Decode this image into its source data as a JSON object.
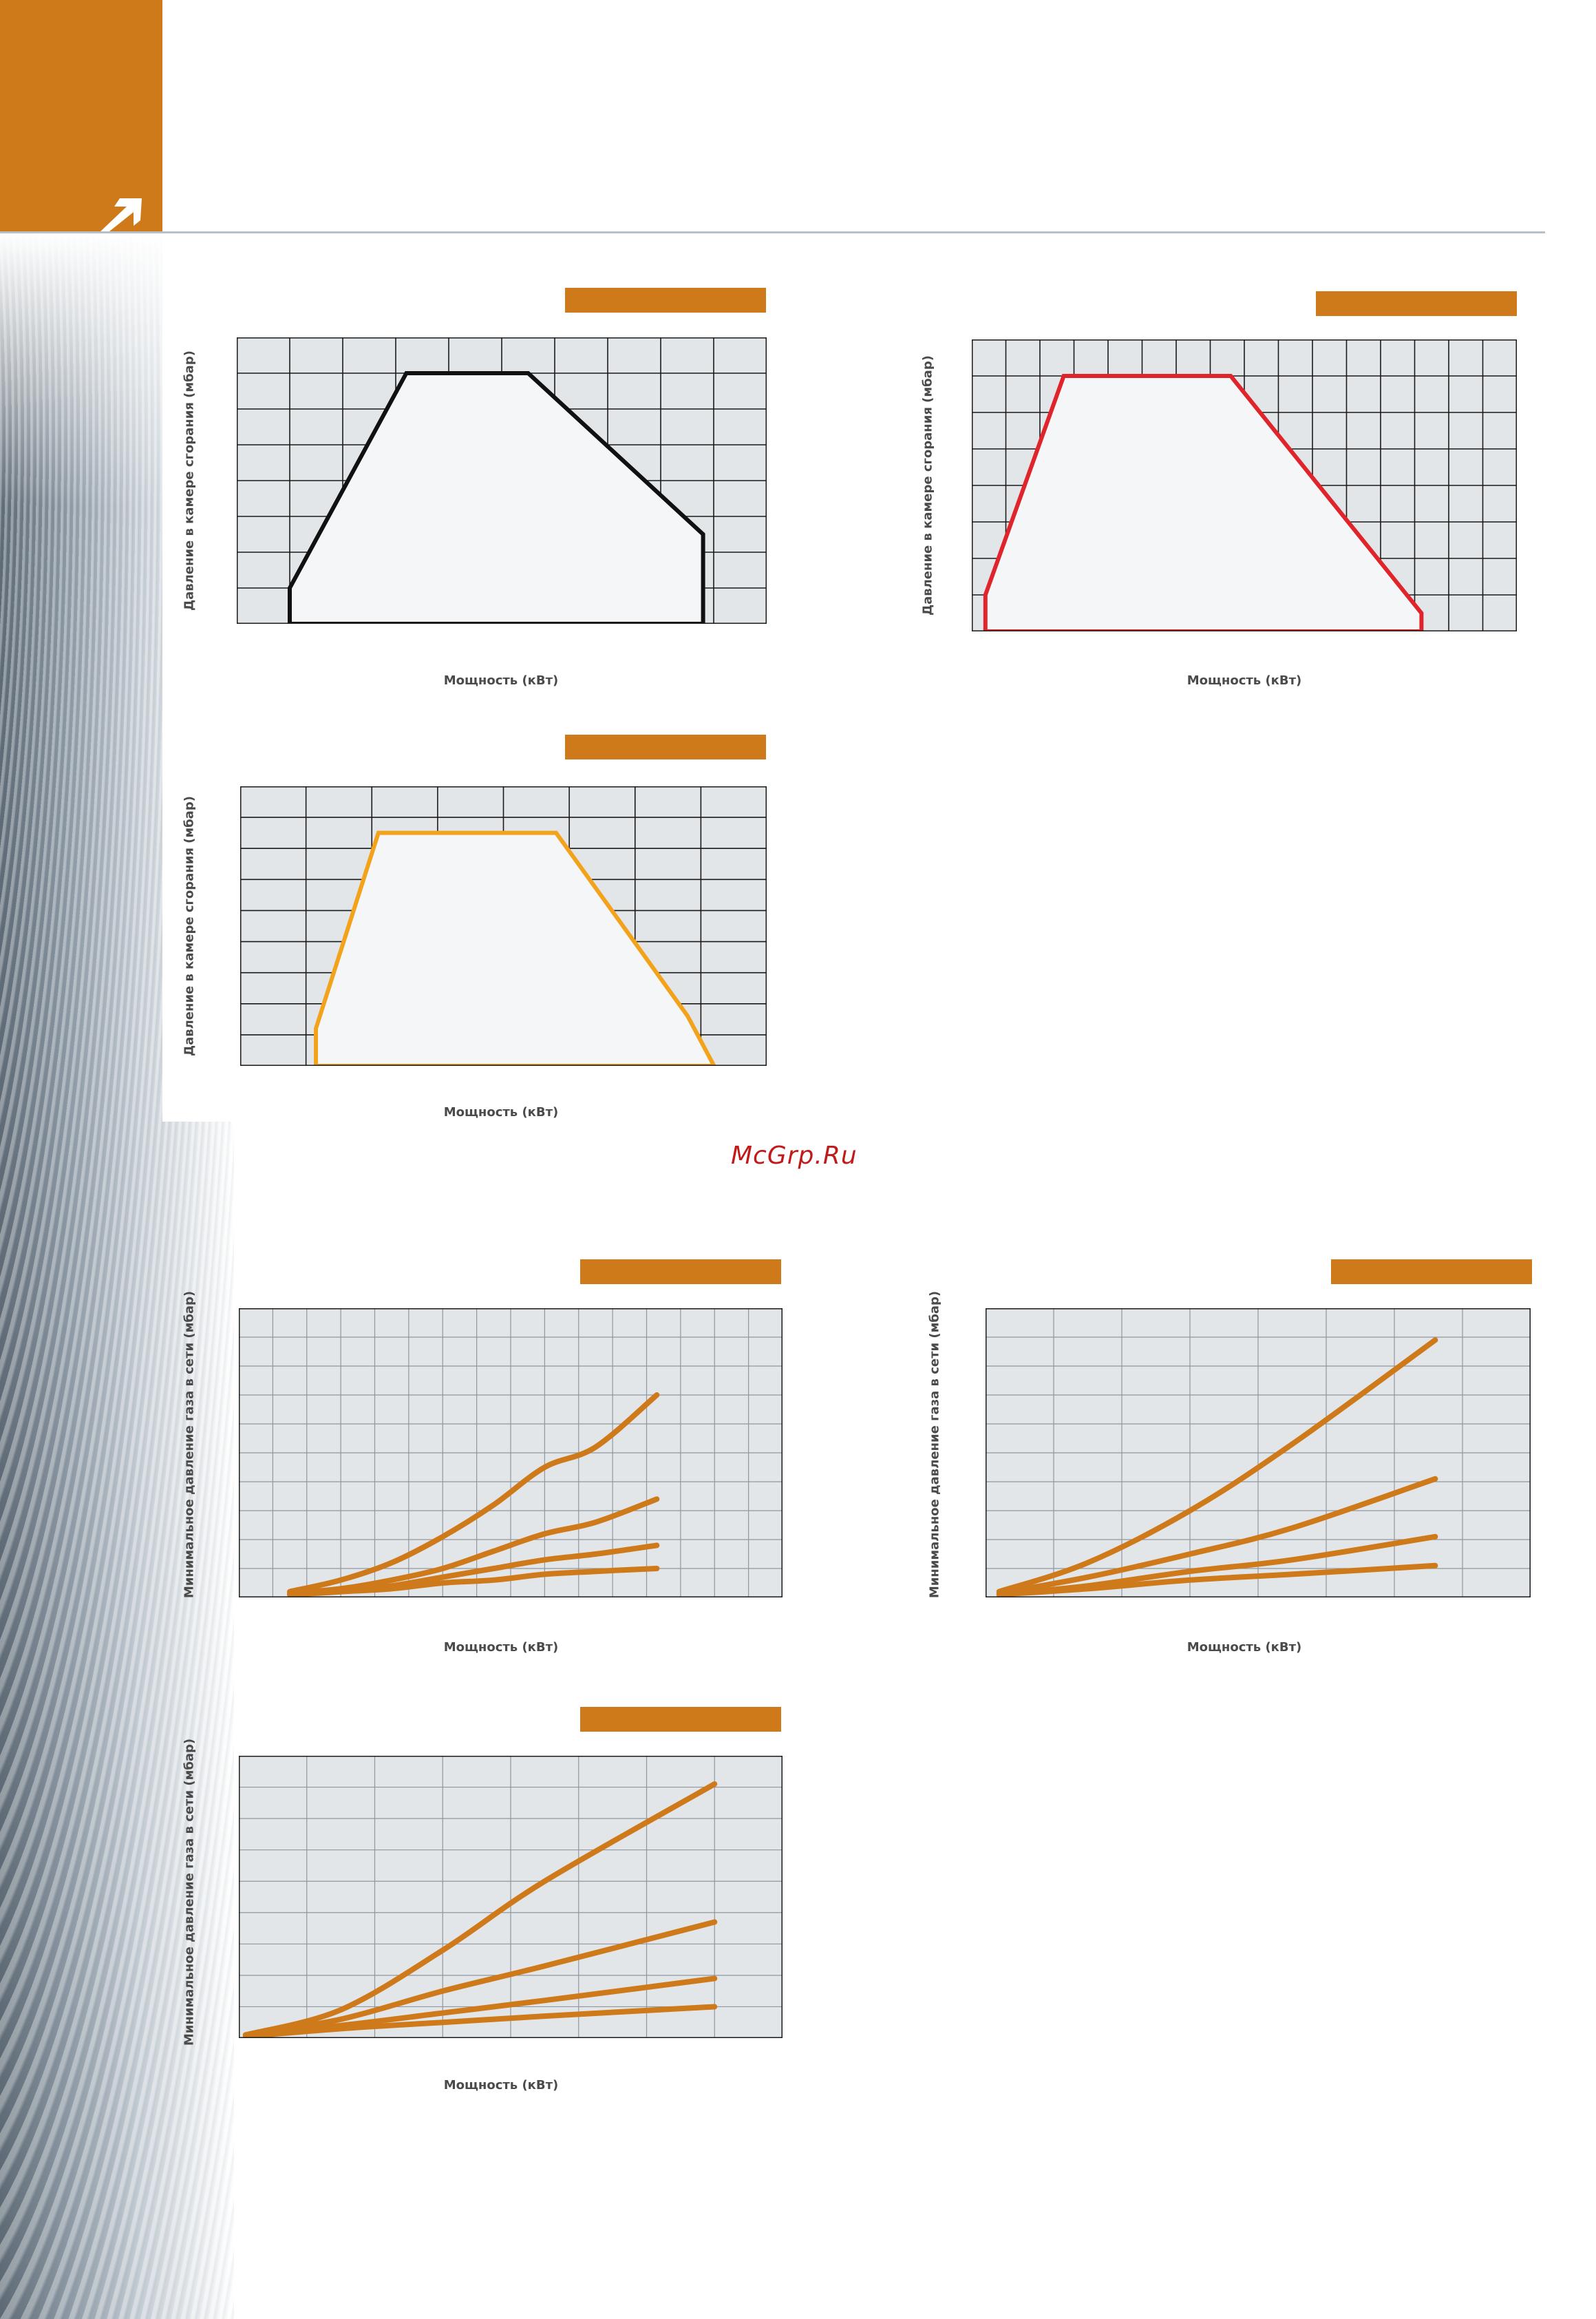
{
  "watermark": "McGrp.Ru",
  "colors": {
    "accent": "#cf7a1a",
    "black": "#111111",
    "red": "#e0242c",
    "yellow": "#f3a21c",
    "curve": "#cf7a1a"
  },
  "chart_data": [
    {
      "id": "working-field-1",
      "type": "area",
      "title": "",
      "xlabel": "Мощность (кВт)",
      "ylabel": "Давление в камере сгорания (мбар)",
      "xlim": [
        0,
        10
      ],
      "ylim": [
        0,
        8
      ],
      "x": [
        1,
        3.2,
        5.5,
        8.8,
        8.8,
        1,
        1
      ],
      "y": [
        1,
        7,
        7,
        2.5,
        0,
        0,
        1
      ],
      "color": "#111111",
      "grid": true
    },
    {
      "id": "working-field-2",
      "type": "area",
      "title": "",
      "xlabel": "Мощность (кВт)",
      "ylabel": "Давление в камере сгорания (мбар)",
      "xlim": [
        0,
        16
      ],
      "ylim": [
        0,
        8
      ],
      "x": [
        0.4,
        2.7,
        7.6,
        13.2,
        13.2,
        0.4,
        0.4
      ],
      "y": [
        1,
        7,
        7,
        0.5,
        0,
        0,
        1
      ],
      "color": "#e0242c",
      "grid": true
    },
    {
      "id": "working-field-3",
      "type": "area",
      "title": "",
      "xlabel": "Мощность (кВт)",
      "ylabel": "Давление в камере сгорания (мбар)",
      "xlim": [
        0,
        8
      ],
      "ylim": [
        0,
        9
      ],
      "x": [
        1.15,
        2.1,
        4.8,
        6.8,
        7.2,
        1.15,
        1.15
      ],
      "y": [
        1.2,
        7.5,
        7.5,
        1.6,
        0,
        0,
        1.2
      ],
      "color": "#f3a21c",
      "grid": true
    },
    {
      "id": "min-gas-pressure-1",
      "type": "line",
      "title": "",
      "xlabel": "Мощность (кВт)",
      "ylabel": "Минимальное давление газа в сети (мбар)",
      "xlim": [
        0,
        16
      ],
      "ylim": [
        0,
        10
      ],
      "x": [
        1.5,
        3,
        4.5,
        6,
        7.5,
        9,
        10.5,
        12.3
      ],
      "series": [
        {
          "name": "curve-1",
          "values": [
            0.2,
            0.6,
            1.2,
            2.1,
            3.2,
            4.5,
            5.2,
            7.0
          ]
        },
        {
          "name": "curve-2",
          "values": [
            0.15,
            0.3,
            0.6,
            1.0,
            1.6,
            2.2,
            2.6,
            3.4
          ]
        },
        {
          "name": "curve-3",
          "values": [
            0.1,
            0.2,
            0.4,
            0.7,
            1.0,
            1.3,
            1.5,
            1.8
          ]
        },
        {
          "name": "curve-4",
          "values": [
            0.1,
            0.2,
            0.3,
            0.5,
            0.6,
            0.8,
            0.9,
            1.0
          ]
        }
      ],
      "grid": true
    },
    {
      "id": "min-gas-pressure-2",
      "type": "line",
      "title": "",
      "xlabel": "Мощность (кВт)",
      "ylabel": "Минимальное давление газа в сети (мбар)",
      "xlim": [
        0,
        8
      ],
      "ylim": [
        0,
        10
      ],
      "x": [
        0.2,
        1.5,
        3,
        4.5,
        6.6
      ],
      "series": [
        {
          "name": "curve-1",
          "values": [
            0.2,
            1.2,
            3.0,
            5.3,
            8.9
          ]
        },
        {
          "name": "curve-2",
          "values": [
            0.15,
            0.7,
            1.5,
            2.4,
            4.1
          ]
        },
        {
          "name": "curve-3",
          "values": [
            0.1,
            0.4,
            0.9,
            1.3,
            2.1
          ]
        },
        {
          "name": "curve-4",
          "values": [
            0.1,
            0.3,
            0.6,
            0.8,
            1.1
          ]
        }
      ],
      "grid": true
    },
    {
      "id": "min-gas-pressure-3",
      "type": "line",
      "title": "",
      "xlabel": "Мощность (кВт)",
      "ylabel": "Минимальное давление газа в сети (мбар)",
      "xlim": [
        0,
        8
      ],
      "ylim": [
        0,
        9
      ],
      "x": [
        0.1,
        1.5,
        3,
        4.5,
        7.0
      ],
      "series": [
        {
          "name": "curve-1",
          "values": [
            0.1,
            0.9,
            2.8,
            5.0,
            8.1
          ]
        },
        {
          "name": "curve-2",
          "values": [
            0.1,
            0.6,
            1.5,
            2.3,
            3.7
          ]
        },
        {
          "name": "curve-3",
          "values": [
            0.1,
            0.4,
            0.8,
            1.2,
            1.9
          ]
        },
        {
          "name": "curve-4",
          "values": [
            0.05,
            0.3,
            0.5,
            0.7,
            1.0
          ]
        }
      ],
      "grid": true
    }
  ]
}
